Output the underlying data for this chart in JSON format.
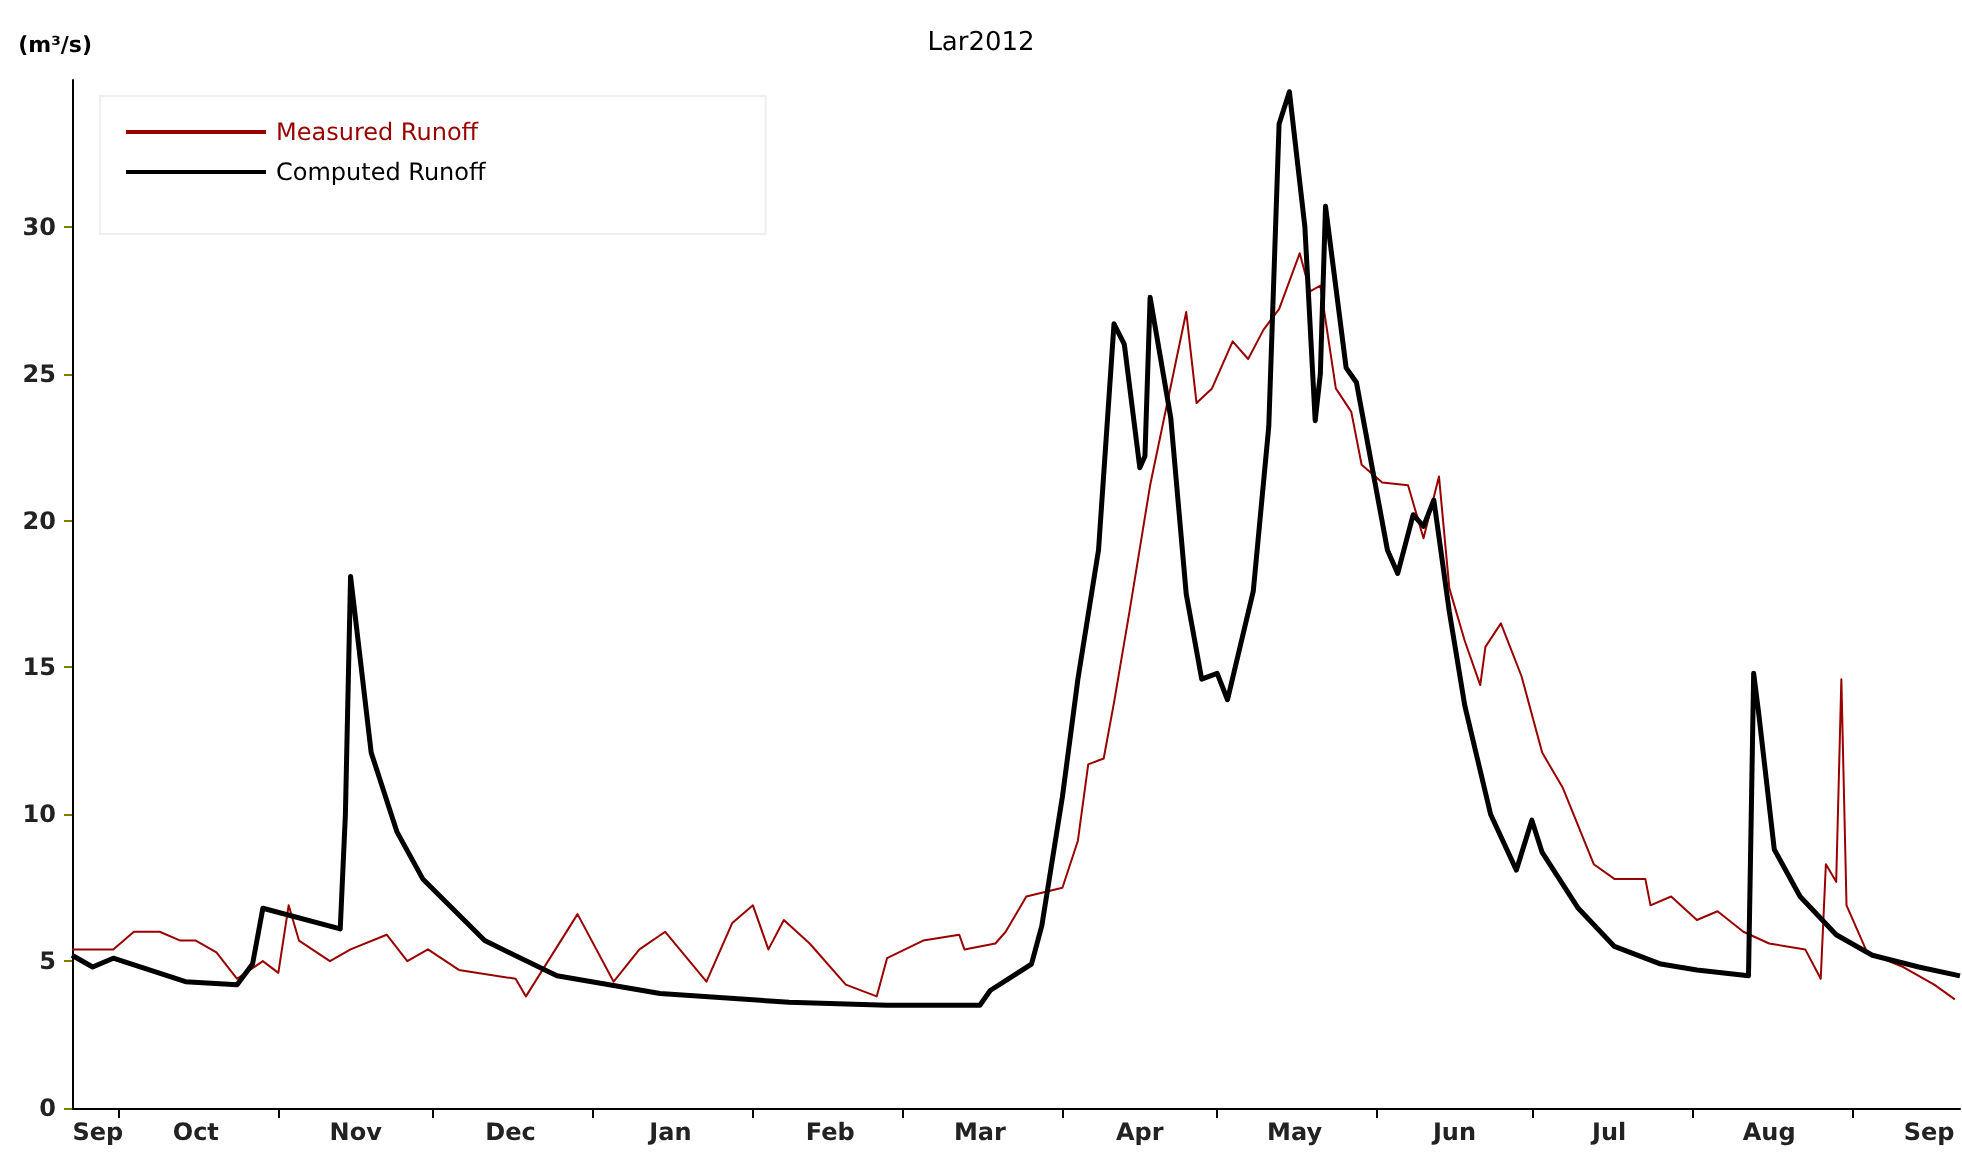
{
  "chart_data": {
    "type": "line",
    "title": "Lar2012",
    "ylabel": "(m³/s)",
    "xlim": [
      "2011-09-22",
      "2012-09-22"
    ],
    "ylim": [
      0,
      35
    ],
    "yticks": [
      0,
      5,
      10,
      15,
      20,
      25,
      30
    ],
    "xticks": [
      {
        "value": "2011-09-27",
        "label": "Sep"
      },
      {
        "value": "2011-10-01",
        "label": null
      },
      {
        "value": "2011-10-16",
        "label": "Oct"
      },
      {
        "value": "2011-11-01",
        "label": null
      },
      {
        "value": "2011-11-16",
        "label": "Nov"
      },
      {
        "value": "2011-12-01",
        "label": null
      },
      {
        "value": "2011-12-16",
        "label": "Dec"
      },
      {
        "value": "2012-01-01",
        "label": null
      },
      {
        "value": "2012-01-16",
        "label": "Jan"
      },
      {
        "value": "2012-02-01",
        "label": null
      },
      {
        "value": "2012-02-16",
        "label": "Feb"
      },
      {
        "value": "2012-03-01",
        "label": null
      },
      {
        "value": "2012-03-16",
        "label": "Mar"
      },
      {
        "value": "2012-04-01",
        "label": null
      },
      {
        "value": "2012-04-16",
        "label": "Apr"
      },
      {
        "value": "2012-05-01",
        "label": null
      },
      {
        "value": "2012-05-16",
        "label": "May"
      },
      {
        "value": "2012-06-01",
        "label": null
      },
      {
        "value": "2012-06-16",
        "label": "Jun"
      },
      {
        "value": "2012-07-01",
        "label": null
      },
      {
        "value": "2012-07-16",
        "label": "Jul"
      },
      {
        "value": "2012-08-01",
        "label": null
      },
      {
        "value": "2012-08-16",
        "label": "Aug"
      },
      {
        "value": "2012-09-01",
        "label": null
      },
      {
        "value": "2012-09-16",
        "label": "Sep"
      }
    ],
    "grid": false,
    "legend": "top left",
    "series": [
      {
        "name": "Measured Runoff",
        "color": "#990000",
        "x": [
          "2011-09-22",
          "2011-09-30",
          "2011-10-04",
          "2011-10-09",
          "2011-10-13",
          "2011-10-16",
          "2011-10-20",
          "2011-10-24",
          "2011-10-29",
          "2011-11-01",
          "2011-11-03",
          "2011-11-05",
          "2011-11-11",
          "2011-11-15",
          "2011-11-22",
          "2011-11-26",
          "2011-11-30",
          "2011-12-06",
          "2011-12-17",
          "2011-12-19",
          "2011-12-29",
          "2012-01-05",
          "2012-01-10",
          "2012-01-15",
          "2012-01-23",
          "2012-01-28",
          "2012-02-01",
          "2012-02-04",
          "2012-02-07",
          "2012-02-12",
          "2012-02-19",
          "2012-02-25",
          "2012-02-27",
          "2012-03-05",
          "2012-03-12",
          "2012-03-13",
          "2012-03-19",
          "2012-03-21",
          "2012-03-25",
          "2012-04-01",
          "2012-04-04",
          "2012-04-06",
          "2012-04-09",
          "2012-04-11",
          "2012-04-14",
          "2012-04-18",
          "2012-04-25",
          "2012-04-27",
          "2012-04-30",
          "2012-05-04",
          "2012-05-07",
          "2012-05-10",
          "2012-05-13",
          "2012-05-17",
          "2012-05-19",
          "2012-05-21",
          "2012-05-24",
          "2012-05-27",
          "2012-05-29",
          "2012-06-02",
          "2012-06-07",
          "2012-06-10",
          "2012-06-13",
          "2012-06-15",
          "2012-06-18",
          "2012-06-21",
          "2012-06-22",
          "2012-06-25",
          "2012-06-29",
          "2012-07-03",
          "2012-07-07",
          "2012-07-13",
          "2012-07-17",
          "2012-07-23",
          "2012-07-24",
          "2012-07-28",
          "2012-08-02",
          "2012-08-06",
          "2012-08-11",
          "2012-08-16",
          "2012-08-23",
          "2012-08-26",
          "2012-08-27",
          "2012-08-29",
          "2012-08-30",
          "2012-08-31",
          "2012-09-04",
          "2012-09-11",
          "2012-09-17",
          "2012-09-21"
        ],
        "values": [
          5.4,
          5.4,
          6.0,
          6.0,
          5.7,
          5.7,
          5.3,
          4.4,
          5.0,
          4.6,
          6.9,
          5.7,
          5.0,
          5.4,
          5.9,
          5.0,
          5.4,
          4.7,
          4.4,
          3.8,
          6.6,
          4.3,
          5.4,
          6.0,
          4.3,
          6.3,
          6.9,
          5.4,
          6.4,
          5.6,
          4.2,
          3.8,
          5.1,
          5.7,
          5.9,
          5.4,
          5.6,
          6.0,
          7.2,
          7.5,
          9.1,
          11.7,
          11.9,
          13.8,
          16.9,
          21.2,
          27.1,
          24.0,
          24.5,
          26.1,
          25.5,
          26.5,
          27.2,
          29.1,
          27.8,
          28.0,
          24.5,
          23.7,
          21.9,
          21.3,
          21.2,
          19.4,
          21.5,
          17.7,
          15.9,
          14.4,
          15.7,
          16.5,
          14.7,
          12.1,
          10.9,
          8.3,
          7.8,
          7.8,
          6.9,
          7.2,
          6.4,
          6.7,
          6.0,
          5.6,
          5.4,
          4.4,
          8.3,
          7.7,
          14.6,
          6.9,
          5.3,
          4.8,
          4.2,
          3.7
        ]
      },
      {
        "name": "Computed Runoff",
        "color": "#000000",
        "x": [
          "2011-09-22",
          "2011-09-26",
          "2011-09-30",
          "2011-10-14",
          "2011-10-24",
          "2011-10-27",
          "2011-10-29",
          "2011-11-13",
          "2011-11-14",
          "2011-11-15",
          "2011-11-19",
          "2011-11-24",
          "2011-11-29",
          "2011-12-11",
          "2011-12-25",
          "2012-01-14",
          "2012-02-08",
          "2012-02-27",
          "2012-03-16",
          "2012-03-18",
          "2012-03-26",
          "2012-03-28",
          "2012-04-01",
          "2012-04-04",
          "2012-04-08",
          "2012-04-11",
          "2012-04-13",
          "2012-04-16",
          "2012-04-17",
          "2012-04-18",
          "2012-04-22",
          "2012-04-25",
          "2012-04-28",
          "2012-05-01",
          "2012-05-03",
          "2012-05-08",
          "2012-05-11",
          "2012-05-13",
          "2012-05-15",
          "2012-05-18",
          "2012-05-20",
          "2012-05-21",
          "2012-05-22",
          "2012-05-26",
          "2012-05-28",
          "2012-06-03",
          "2012-06-05",
          "2012-06-08",
          "2012-06-10",
          "2012-06-12",
          "2012-06-15",
          "2012-06-18",
          "2012-06-23",
          "2012-06-28",
          "2012-07-01",
          "2012-07-03",
          "2012-07-10",
          "2012-07-17",
          "2012-07-26",
          "2012-08-02",
          "2012-08-12",
          "2012-08-13",
          "2012-08-14",
          "2012-08-17",
          "2012-08-22",
          "2012-08-29",
          "2012-09-05",
          "2012-09-14",
          "2012-09-22"
        ],
        "values": [
          5.2,
          4.8,
          5.1,
          4.3,
          4.2,
          4.9,
          6.8,
          6.1,
          10.0,
          18.1,
          12.1,
          9.4,
          7.8,
          5.7,
          4.5,
          3.9,
          3.6,
          3.5,
          3.5,
          4.0,
          4.9,
          6.2,
          10.6,
          14.6,
          19.0,
          26.7,
          26.0,
          21.8,
          22.2,
          27.6,
          23.5,
          17.5,
          14.6,
          14.8,
          13.9,
          17.6,
          23.2,
          33.5,
          34.6,
          30.0,
          23.4,
          25.0,
          30.7,
          25.2,
          24.7,
          19.0,
          18.2,
          20.2,
          19.8,
          20.7,
          16.9,
          13.7,
          10.0,
          8.1,
          9.8,
          8.7,
          6.8,
          5.5,
          4.9,
          4.7,
          4.5,
          14.8,
          13.4,
          8.8,
          7.2,
          5.9,
          5.2,
          4.8,
          4.5
        ]
      }
    ]
  }
}
